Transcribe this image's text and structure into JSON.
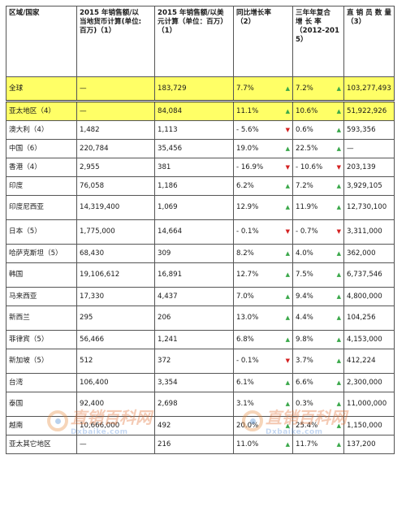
{
  "headers": [
    {
      "lines": [
        "区域/国家"
      ]
    },
    {
      "lines": [
        "2015 年销售额/以",
        "当地货币计算(单位:",
        "百万)（1）"
      ]
    },
    {
      "lines": [
        "2015 年销售额/以美",
        "元计算（单位：百万）",
        "（1）"
      ]
    },
    {
      "lines": [
        "同比增长率",
        "（2）"
      ]
    },
    {
      "lines": [
        "三年年复合",
        "增 长 率",
        "（2012-201",
        "5）"
      ]
    },
    {
      "lines": [
        "直 销 员 数 量",
        "（3）"
      ]
    }
  ],
  "rows": [
    {
      "region": "全球",
      "local": "—",
      "usd": "183,729",
      "yoy": "7.7%",
      "yoy_dir": "up",
      "cagr": "7.2%",
      "cagr_dir": "up",
      "reps": "103,277,493",
      "highlight": true
    },
    {
      "region": "亚太地区（4）",
      "local": "—",
      "usd": "84,084",
      "yoy": "11.1%",
      "yoy_dir": "up",
      "cagr": "10.6%",
      "cagr_dir": "up",
      "reps": "51,922,926",
      "highlight": true
    },
    {
      "region": "澳大利（4）",
      "local": "1,482",
      "usd": "1,113",
      "yoy": "- 5.6%",
      "yoy_dir": "down",
      "cagr": "0.6%",
      "cagr_dir": "up",
      "reps": "593,356"
    },
    {
      "region": "中国（6）",
      "local": "220,784",
      "usd": "35,456",
      "yoy": "19.0%",
      "yoy_dir": "up",
      "cagr": "22.5%",
      "cagr_dir": "up",
      "reps": "—"
    },
    {
      "region": "香港（4）",
      "local": "2,955",
      "usd": "381",
      "yoy": "- 16.9%",
      "yoy_dir": "down",
      "cagr": "- 10.6%",
      "cagr_dir": "down",
      "reps": "203,139"
    },
    {
      "region": "印度",
      "local": "76,058",
      "usd": "1,186",
      "yoy": "6.2%",
      "yoy_dir": "up",
      "cagr": "7.2%",
      "cagr_dir": "up",
      "reps": "3,929,105"
    },
    {
      "region": "印度尼西亚",
      "local": "14,319,400",
      "usd": "1,069",
      "yoy": "12.9%",
      "yoy_dir": "up",
      "cagr": "11.9%",
      "cagr_dir": "up",
      "reps": "12,730,100",
      "big": true
    },
    {
      "region": "日本（5）",
      "local": "1,775,000",
      "usd": "14,664",
      "yoy": "- 0.1%",
      "yoy_dir": "down",
      "cagr": "- 0.7%",
      "cagr_dir": "down",
      "reps": "3,311,000",
      "big": true
    },
    {
      "region": "哈萨克斯坦（5）",
      "local": "68,430",
      "usd": "309",
      "yoy": "8.2%",
      "yoy_dir": "up",
      "cagr": "4.0%",
      "cagr_dir": "up",
      "reps": "362,000"
    },
    {
      "region": "韩国",
      "local": "19,106,612",
      "usd": "16,891",
      "yoy": "12.7%",
      "yoy_dir": "up",
      "cagr": "7.5%",
      "cagr_dir": "up",
      "reps": "6,737,546",
      "big": true
    },
    {
      "region": "马来西亚",
      "local": "17,330",
      "usd": "4,437",
      "yoy": "7.0%",
      "yoy_dir": "up",
      "cagr": "9.4%",
      "cagr_dir": "up",
      "reps": "4,800,000"
    },
    {
      "region": "新西兰",
      "local": "295",
      "usd": "206",
      "yoy": "13.0%",
      "yoy_dir": "up",
      "cagr": "4.4%",
      "cagr_dir": "up",
      "reps": "104,256",
      "big": true
    },
    {
      "region": "菲律宾（5）",
      "local": "56,466",
      "usd": "1,241",
      "yoy": "6.8%",
      "yoy_dir": "up",
      "cagr": "9.8%",
      "cagr_dir": "up",
      "reps": "4,153,000"
    },
    {
      "region": "新加坡（5）",
      "local": "512",
      "usd": "372",
      "yoy": "- 0.1%",
      "yoy_dir": "down",
      "cagr": "3.7%",
      "cagr_dir": "up",
      "reps": "412,224",
      "big": true
    },
    {
      "region": "台湾",
      "local": "106,400",
      "usd": "3,354",
      "yoy": "6.1%",
      "yoy_dir": "up",
      "cagr": "6.6%",
      "cagr_dir": "up",
      "reps": "2,300,000"
    },
    {
      "region": "泰国",
      "local": "92,400",
      "usd": "2,698",
      "yoy": "3.1%",
      "yoy_dir": "up",
      "cagr": "0.3%",
      "cagr_dir": "up",
      "reps": "11,000,000",
      "big": true
    },
    {
      "region": "越南",
      "local": "10,666,000",
      "usd": "492",
      "yoy": "20.0%",
      "yoy_dir": "up",
      "cagr": "25.4%",
      "cagr_dir": "up",
      "reps": "1,150,000"
    },
    {
      "region": "亚太其它地区",
      "local": "—",
      "usd": "216",
      "yoy": "11.0%",
      "yoy_dir": "up",
      "cagr": "11.7%",
      "cagr_dir": "up",
      "reps": "137,200"
    }
  ],
  "colors": {
    "highlight": "#ffff66",
    "up": "#3aa84a",
    "down": "#d42020"
  },
  "watermark": {
    "brand": "直销百科网",
    "domain": "Dxbaike.com"
  }
}
